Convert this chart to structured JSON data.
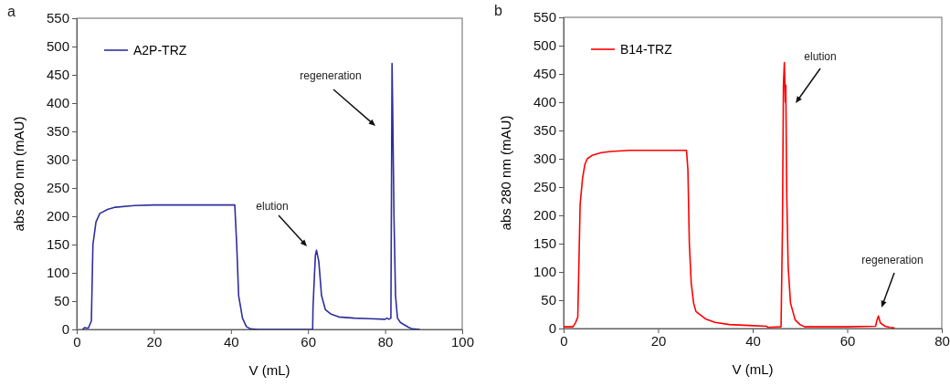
{
  "chart_data": [
    {
      "type": "line",
      "xlabel": "V (mL)",
      "ylabel": "abs 280 nm (mAU)",
      "xlim": [
        0,
        100
      ],
      "xticks": [
        0,
        20,
        40,
        60,
        80,
        100
      ],
      "ylim": [
        0,
        550
      ],
      "yticks": [
        0,
        50,
        100,
        150,
        200,
        250,
        300,
        350,
        400,
        450,
        500,
        550
      ],
      "grid": false,
      "legend": "top left",
      "marker": "none",
      "line_style": "solid",
      "annotations": [
        "a",
        "elution",
        "regeneration"
      ],
      "series": [
        {
          "name": "A2P-TRZ",
          "color": "#2e2e9e",
          "x": [
            1.5,
            2,
            3,
            3.8,
            4.2,
            5,
            6,
            8,
            10,
            15,
            20,
            30,
            40,
            41,
            41.5,
            42,
            43,
            44,
            45,
            47,
            61.2,
            61.3,
            61.9,
            62.2,
            62.8,
            63.5,
            64.5,
            66,
            68,
            72,
            76,
            80,
            80.5,
            81,
            81.5,
            81.8,
            82,
            82.3,
            82.7,
            83.2,
            84,
            86,
            87,
            89
          ],
          "values": [
            0,
            3,
            2,
            15,
            150,
            190,
            205,
            212,
            216,
            219,
            220,
            220,
            220,
            220,
            150,
            60,
            20,
            5,
            1,
            0,
            0,
            40,
            130,
            140,
            120,
            60,
            35,
            27,
            22,
            20,
            19,
            18,
            20,
            18,
            20,
            470,
            370,
            200,
            60,
            20,
            12,
            4,
            1,
            0
          ]
        }
      ]
    },
    {
      "type": "line",
      "xlabel": "V (mL)",
      "ylabel": "abs 280 nm (mAU)",
      "xlim": [
        0,
        80
      ],
      "xticks": [
        0,
        20,
        40,
        60,
        80
      ],
      "ylim": [
        0,
        550
      ],
      "yticks": [
        0,
        50,
        100,
        150,
        200,
        250,
        300,
        350,
        400,
        450,
        500,
        550
      ],
      "grid": false,
      "legend": "top left",
      "marker": "none",
      "line_style": "solid",
      "annotations": [
        "b",
        "elution",
        "regeneration"
      ],
      "series": [
        {
          "name": "B14-TRZ",
          "color": "#ff0000",
          "x": [
            0,
            2,
            2.5,
            3,
            3.2,
            3.5,
            4,
            4.5,
            5,
            6,
            8,
            10,
            14,
            26,
            26.3,
            26.6,
            27,
            27.5,
            28,
            30,
            32,
            35,
            40,
            43,
            43.1,
            46,
            46.3,
            46.5,
            46.7,
            46.9,
            47,
            47.2,
            47.5,
            48,
            49,
            50,
            51,
            60,
            66,
            66.3,
            66.6,
            67,
            68,
            69,
            70
          ],
          "values": [
            3,
            3,
            10,
            20,
            100,
            220,
            265,
            290,
            300,
            306,
            311,
            313,
            315,
            315,
            280,
            150,
            80,
            45,
            30,
            17,
            11,
            7,
            5,
            4,
            2,
            3,
            180,
            430,
            470,
            400,
            430,
            240,
            110,
            45,
            15,
            7,
            3,
            3,
            4,
            15,
            22,
            10,
            4,
            2,
            1
          ]
        }
      ]
    }
  ]
}
